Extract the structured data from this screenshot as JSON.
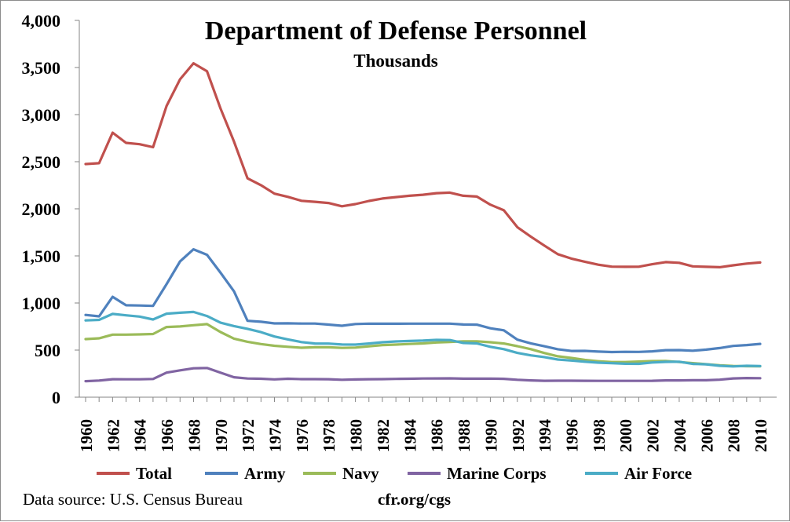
{
  "chart_data": {
    "type": "line",
    "title": "Department of Defense Personnel",
    "subtitle": "Thousands",
    "xlabel": "",
    "ylabel": "",
    "ylim": [
      0,
      4000
    ],
    "xlim": [
      1960,
      2010
    ],
    "y_ticks": [
      "0",
      "500",
      "1,000",
      "1,500",
      "2,000",
      "2,500",
      "3,000",
      "3,500",
      "4,000"
    ],
    "x_ticks": [
      "1960",
      "1962",
      "1964",
      "1966",
      "1968",
      "1970",
      "1972",
      "1974",
      "1976",
      "1978",
      "1980",
      "1982",
      "1984",
      "1986",
      "1988",
      "1990",
      "1992",
      "1994",
      "1996",
      "1998",
      "2000",
      "2002",
      "2004",
      "2006",
      "2008",
      "2010"
    ],
    "grid": false,
    "legend_position": "bottom",
    "x": [
      1960,
      1961,
      1962,
      1963,
      1964,
      1965,
      1966,
      1967,
      1968,
      1969,
      1970,
      1971,
      1972,
      1973,
      1974,
      1975,
      1976,
      1977,
      1978,
      1979,
      1980,
      1981,
      1982,
      1983,
      1984,
      1985,
      1986,
      1987,
      1988,
      1989,
      1990,
      1991,
      1992,
      1993,
      1994,
      1995,
      1996,
      1997,
      1998,
      1999,
      2000,
      2001,
      2002,
      2003,
      2004,
      2005,
      2006,
      2007,
      2008,
      2009,
      2010
    ],
    "series": [
      {
        "name": "Total",
        "color": "#c0504d",
        "values": [
          2475,
          2484,
          2808,
          2700,
          2686,
          2654,
          3092,
          3375,
          3545,
          3460,
          3065,
          2713,
          2323,
          2251,
          2161,
          2127,
          2085,
          2074,
          2062,
          2027,
          2050,
          2083,
          2109,
          2124,
          2138,
          2149,
          2166,
          2172,
          2138,
          2130,
          2044,
          1984,
          1805,
          1705,
          1610,
          1518,
          1472,
          1438,
          1407,
          1386,
          1384,
          1385,
          1412,
          1434,
          1427,
          1389,
          1384,
          1380,
          1400,
          1418,
          1430
        ]
      },
      {
        "name": "Army",
        "color": "#4f81bd",
        "values": [
          873,
          858,
          1066,
          976,
          973,
          969,
          1200,
          1442,
          1570,
          1512,
          1322,
          1123,
          811,
          801,
          783,
          784,
          782,
          782,
          771,
          758,
          777,
          781,
          780,
          780,
          781,
          781,
          781,
          781,
          772,
          770,
          732,
          710,
          611,
          572,
          541,
          509,
          491,
          492,
          484,
          479,
          482,
          481,
          487,
          499,
          500,
          493,
          505,
          522,
          544,
          553,
          566
        ]
      },
      {
        "name": "Navy",
        "color": "#9bbb59",
        "values": [
          617,
          625,
          664,
          664,
          667,
          671,
          745,
          751,
          764,
          776,
          692,
          622,
          588,
          564,
          546,
          535,
          525,
          530,
          530,
          523,
          527,
          540,
          553,
          558,
          565,
          571,
          581,
          587,
          593,
          593,
          583,
          570,
          542,
          510,
          469,
          434,
          417,
          396,
          382,
          373,
          373,
          378,
          383,
          385,
          373,
          362,
          350,
          338,
          332,
          329,
          328
        ]
      },
      {
        "name": "Marine Corps",
        "color": "#8064a2",
        "values": [
          170,
          177,
          191,
          190,
          190,
          193,
          261,
          285,
          307,
          310,
          260,
          212,
          198,
          196,
          189,
          196,
          192,
          192,
          191,
          185,
          188,
          191,
          192,
          194,
          196,
          198,
          199,
          200,
          197,
          197,
          197,
          195,
          185,
          178,
          174,
          175,
          175,
          174,
          173,
          173,
          173,
          173,
          174,
          178,
          178,
          180,
          180,
          186,
          199,
          203,
          202
        ]
      },
      {
        "name": "Air Force",
        "color": "#4bacc6",
        "values": [
          815,
          821,
          884,
          869,
          856,
          825,
          887,
          897,
          905,
          862,
          791,
          755,
          726,
          691,
          644,
          613,
          585,
          570,
          569,
          559,
          558,
          570,
          583,
          592,
          597,
          601,
          608,
          607,
          576,
          571,
          535,
          510,
          470,
          444,
          426,
          400,
          389,
          377,
          367,
          361,
          355,
          354,
          368,
          375,
          377,
          353,
          349,
          333,
          327,
          333,
          330
        ]
      }
    ],
    "footer": {
      "source": "Data source: U.S. Census Bureau",
      "website": "cfr.org/cgs"
    }
  }
}
